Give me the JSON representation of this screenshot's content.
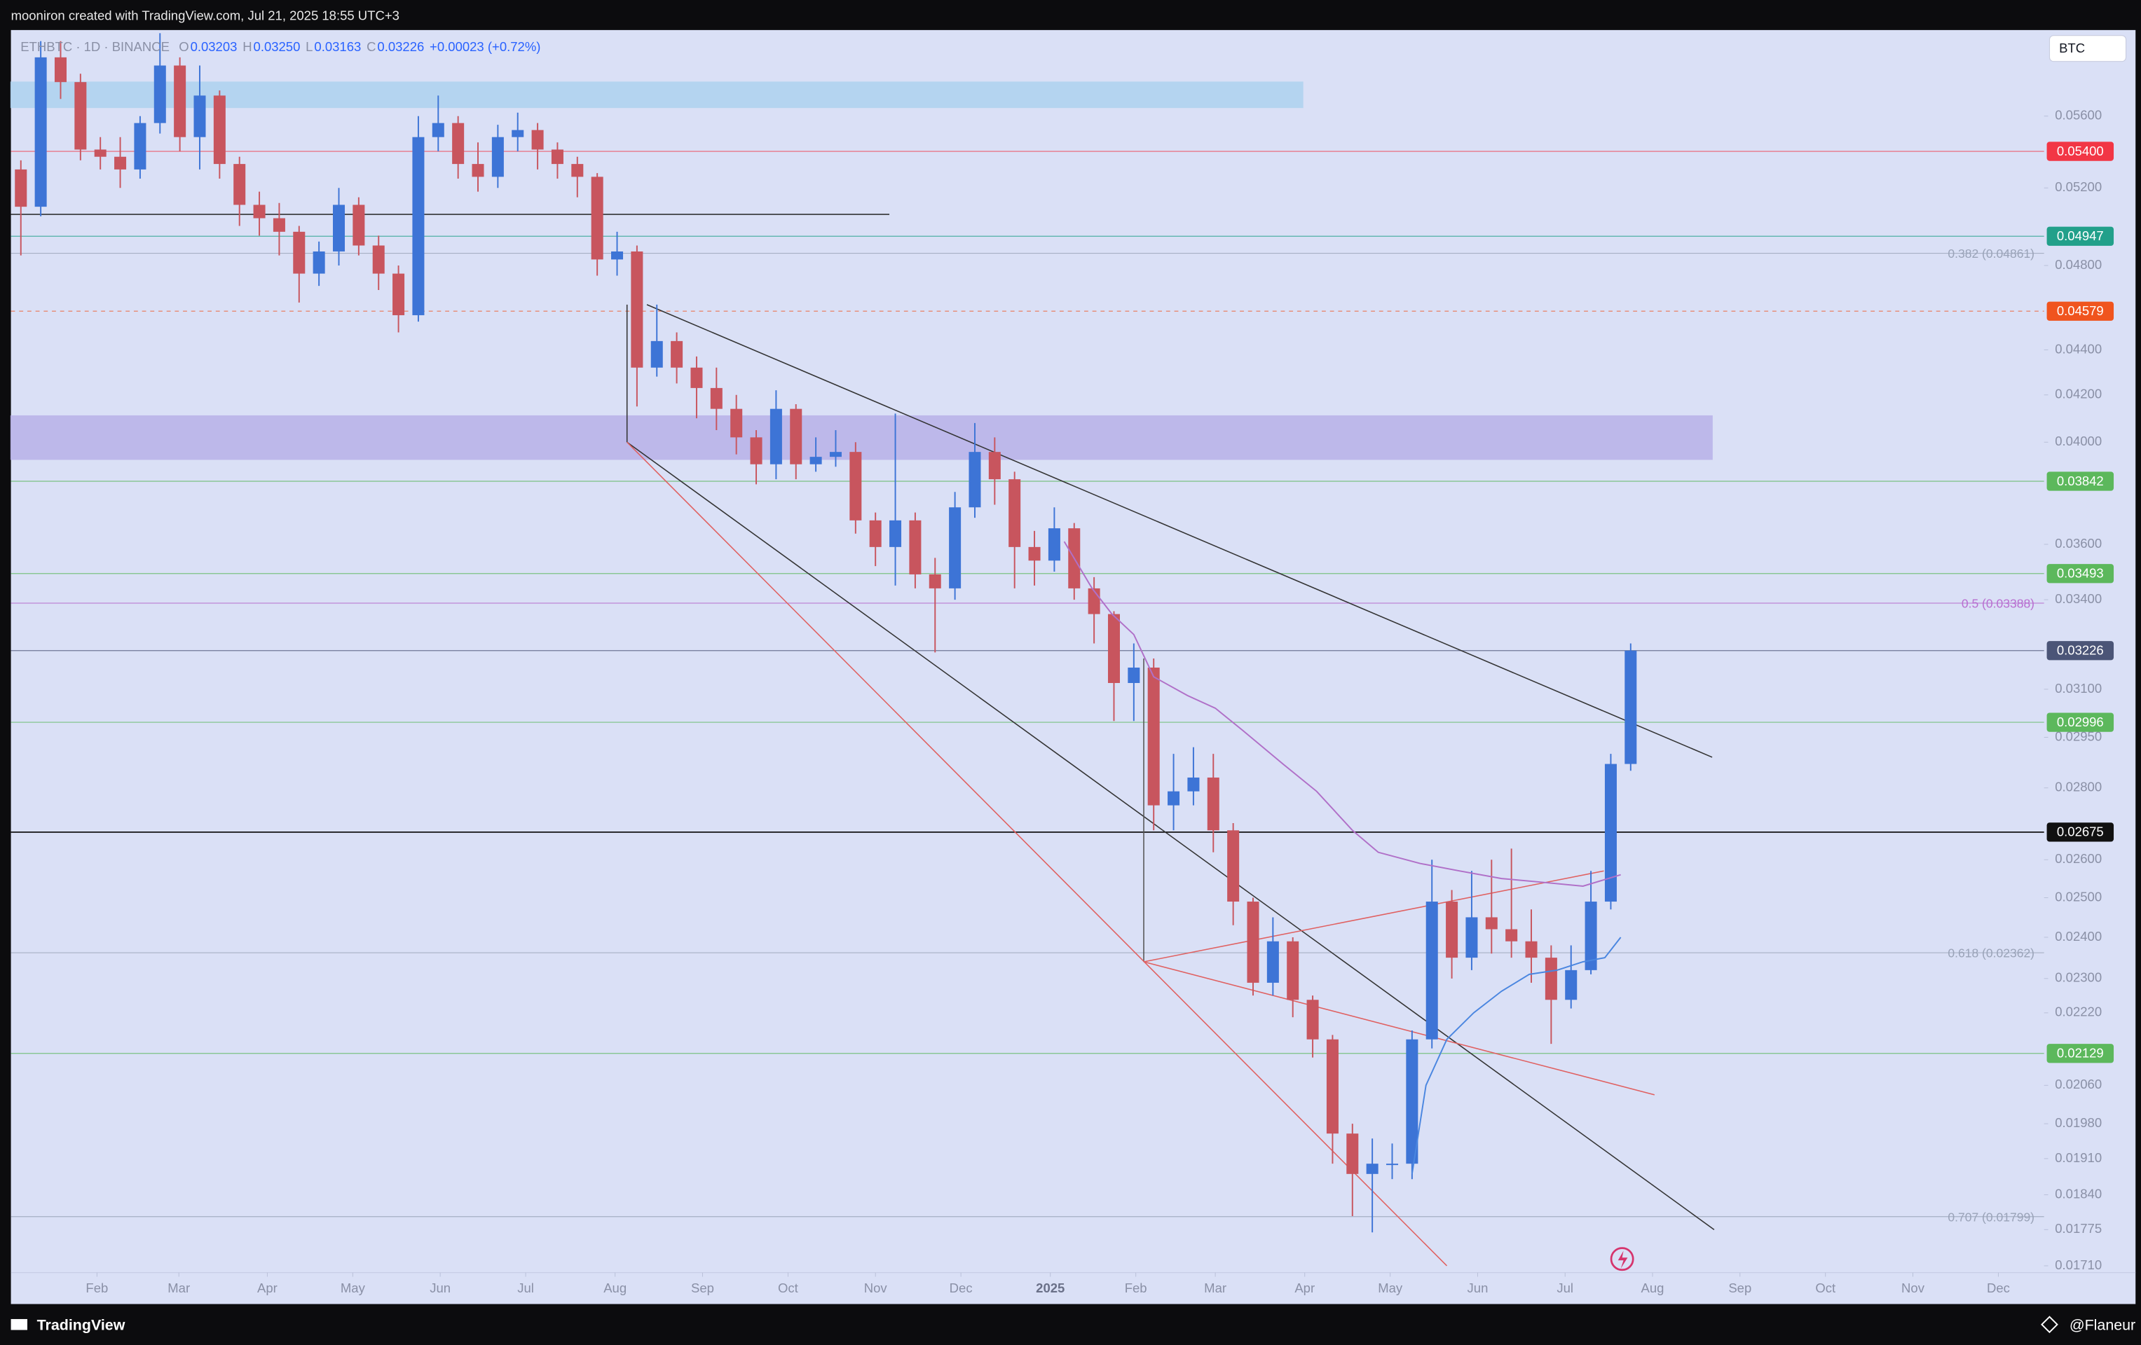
{
  "header": {
    "attribution": "mooniron created with TradingView.com, Jul 21, 2025 18:55 UTC+3"
  },
  "footer": {
    "brand": "TradingView",
    "author": "@Flaneur"
  },
  "chart_data": {
    "type": "candlestick",
    "title": "ETHBTC · 1D · BINANCE",
    "ohlc": [
      {
        "key": "O",
        "value": "0.03203"
      },
      {
        "key": "H",
        "value": "0.03250"
      },
      {
        "key": "L",
        "value": "0.03163"
      },
      {
        "key": "C",
        "value": "0.03226"
      }
    ],
    "change": "+0.00023 (+0.72%)",
    "currency": "BTC",
    "log_scale": true,
    "up_color": "#3d74d6",
    "down_color": "#c8555e",
    "open": [
      0.053,
      0.051,
      0.0595,
      0.058,
      0.0541,
      0.0537,
      0.053,
      0.0556,
      0.059,
      0.0548,
      0.0572,
      0.0533,
      0.0511,
      0.0504,
      0.0497,
      0.0476,
      0.0487,
      0.0511,
      0.049,
      0.0476,
      0.0456,
      0.0548,
      0.0556,
      0.0533,
      0.0526,
      0.0548,
      0.0552,
      0.0541,
      0.0533,
      0.0526,
      0.0483,
      0.0487,
      0.0432,
      0.0444,
      0.0432,
      0.0423,
      0.0414,
      0.0402,
      0.0391,
      0.0414,
      0.0391,
      0.0394,
      0.0396,
      0.0369,
      0.0359,
      0.0369,
      0.0349,
      0.0344,
      0.0374,
      0.0396,
      0.0385,
      0.0359,
      0.0354,
      0.0366,
      0.0344,
      0.0335,
      0.0312,
      0.0317,
      0.0275,
      0.0279,
      0.0283,
      0.0268,
      0.0249,
      0.0229,
      0.0239,
      0.0225,
      0.0216,
      0.0196,
      0.0188,
      0.019,
      0.019,
      0.0216,
      0.0249,
      0.0235,
      0.0245,
      0.0242,
      0.0239,
      0.0235,
      0.0225,
      0.0232,
      0.0249,
      0.0287
    ],
    "high": [
      0.0535,
      0.0605,
      0.0605,
      0.0585,
      0.0548,
      0.0548,
      0.056,
      0.061,
      0.0595,
      0.059,
      0.0575,
      0.0537,
      0.0518,
      0.0512,
      0.05,
      0.0492,
      0.052,
      0.0515,
      0.0495,
      0.048,
      0.056,
      0.0572,
      0.056,
      0.0545,
      0.0555,
      0.0562,
      0.0556,
      0.0545,
      0.0537,
      0.0528,
      0.0497,
      0.049,
      0.0461,
      0.0448,
      0.0437,
      0.0432,
      0.042,
      0.0405,
      0.0422,
      0.0416,
      0.0402,
      0.0405,
      0.04,
      0.0372,
      0.0412,
      0.0372,
      0.0355,
      0.038,
      0.0408,
      0.0402,
      0.0388,
      0.0365,
      0.0374,
      0.0368,
      0.0348,
      0.0336,
      0.0325,
      0.032,
      0.029,
      0.0292,
      0.029,
      0.027,
      0.025,
      0.0245,
      0.024,
      0.0226,
      0.0217,
      0.0198,
      0.0195,
      0.0194,
      0.0218,
      0.026,
      0.0252,
      0.0257,
      0.026,
      0.0263,
      0.0247,
      0.0238,
      0.0238,
      0.0257,
      0.029,
      0.0325
    ],
    "low": [
      0.0485,
      0.0505,
      0.057,
      0.0535,
      0.053,
      0.052,
      0.0525,
      0.055,
      0.054,
      0.053,
      0.0525,
      0.05,
      0.0495,
      0.0485,
      0.0462,
      0.047,
      0.048,
      0.0485,
      0.0468,
      0.0448,
      0.0453,
      0.054,
      0.0525,
      0.0518,
      0.052,
      0.054,
      0.053,
      0.0525,
      0.0515,
      0.0475,
      0.0475,
      0.0415,
      0.0428,
      0.0425,
      0.041,
      0.0405,
      0.0395,
      0.0383,
      0.0385,
      0.0385,
      0.0388,
      0.039,
      0.0364,
      0.0352,
      0.0345,
      0.0344,
      0.0322,
      0.034,
      0.037,
      0.0375,
      0.0344,
      0.0345,
      0.035,
      0.034,
      0.0325,
      0.03,
      0.03,
      0.0268,
      0.0268,
      0.0275,
      0.0262,
      0.0243,
      0.0226,
      0.0226,
      0.0221,
      0.0212,
      0.019,
      0.018,
      0.0177,
      0.0187,
      0.0187,
      0.0214,
      0.023,
      0.0232,
      0.0236,
      0.0235,
      0.0229,
      0.0215,
      0.0223,
      0.0231,
      0.0247,
      0.0285
    ],
    "close": [
      0.051,
      0.0595,
      0.058,
      0.0541,
      0.0537,
      0.053,
      0.0556,
      0.059,
      0.0548,
      0.0572,
      0.0533,
      0.0511,
      0.0504,
      0.0497,
      0.0476,
      0.0487,
      0.0511,
      0.049,
      0.0476,
      0.0456,
      0.0548,
      0.0556,
      0.0533,
      0.0526,
      0.0548,
      0.0552,
      0.0541,
      0.0533,
      0.0526,
      0.0483,
      0.0487,
      0.0432,
      0.0444,
      0.0432,
      0.0423,
      0.0414,
      0.0402,
      0.0391,
      0.0414,
      0.0391,
      0.0394,
      0.0396,
      0.0369,
      0.0359,
      0.0369,
      0.0349,
      0.0344,
      0.0374,
      0.0396,
      0.0385,
      0.0359,
      0.0354,
      0.0366,
      0.0344,
      0.0335,
      0.0312,
      0.0317,
      0.0275,
      0.0279,
      0.0283,
      0.0268,
      0.0249,
      0.0229,
      0.0239,
      0.0225,
      0.0216,
      0.0196,
      0.0188,
      0.019,
      0.019,
      0.0216,
      0.0249,
      0.0235,
      0.0245,
      0.0242,
      0.0239,
      0.0235,
      0.0225,
      0.0232,
      0.0249,
      0.0287,
      0.03226
    ],
    "xlim": [
      -0.5,
      101.8
    ],
    "xticks": [
      {
        "value": 3.83,
        "label": "Feb"
      },
      {
        "value": 7.95,
        "label": "Mar"
      },
      {
        "value": 12.4,
        "label": "Apr"
      },
      {
        "value": 16.7,
        "label": "May"
      },
      {
        "value": 21.1,
        "label": "Jun"
      },
      {
        "value": 25.4,
        "label": "Jul"
      },
      {
        "value": 29.9,
        "label": "Aug"
      },
      {
        "value": 34.3,
        "label": "Sep"
      },
      {
        "value": 38.6,
        "label": "Oct"
      },
      {
        "value": 43.0,
        "label": "Nov"
      },
      {
        "value": 47.3,
        "label": "Dec"
      },
      {
        "value": 51.8,
        "label": "2025"
      },
      {
        "value": 56.1,
        "label": "Feb"
      },
      {
        "value": 60.1,
        "label": "Mar"
      },
      {
        "value": 64.6,
        "label": "Apr"
      },
      {
        "value": 68.9,
        "label": "May"
      },
      {
        "value": 73.3,
        "label": "Jun"
      },
      {
        "value": 77.7,
        "label": "Jul"
      },
      {
        "value": 82.1,
        "label": "Aug"
      },
      {
        "value": 86.5,
        "label": "Sep"
      },
      {
        "value": 90.8,
        "label": "Oct"
      },
      {
        "value": 95.2,
        "label": "Nov"
      },
      {
        "value": 99.5,
        "label": "Dec"
      }
    ],
    "ylim": [
      0.01698,
      0.0612
    ],
    "yticks": [
      {
        "value": 0.056,
        "label": "0.05600"
      },
      {
        "value": 0.052,
        "label": "0.05200"
      },
      {
        "value": 0.048,
        "label": "0.04800"
      },
      {
        "value": 0.044,
        "label": "0.04400"
      },
      {
        "value": 0.042,
        "label": "0.04200"
      },
      {
        "value": 0.04,
        "label": "0.04000"
      },
      {
        "value": 0.036,
        "label": "0.03600"
      },
      {
        "value": 0.034,
        "label": "0.03400"
      },
      {
        "value": 0.031,
        "label": "0.03100"
      },
      {
        "value": 0.0295,
        "label": "0.02950"
      },
      {
        "value": 0.028,
        "label": "0.02800"
      },
      {
        "value": 0.026,
        "label": "0.02600"
      },
      {
        "value": 0.025,
        "label": "0.02500"
      },
      {
        "value": 0.024,
        "label": "0.02400"
      },
      {
        "value": 0.023,
        "label": "0.02300"
      },
      {
        "value": 0.0222,
        "label": "0.02220"
      },
      {
        "value": 0.0206,
        "label": "0.02060"
      },
      {
        "value": 0.0198,
        "label": "0.01980"
      },
      {
        "value": 0.0191,
        "label": "0.01910"
      },
      {
        "value": 0.0184,
        "label": "0.01840"
      },
      {
        "value": 0.01775,
        "label": "0.01775"
      },
      {
        "value": 0.0171,
        "label": "0.01710"
      }
    ],
    "levels": [
      {
        "value": 0.054,
        "label": "0.05400",
        "color": "#f23645"
      },
      {
        "value": 0.04947,
        "label": "0.04947",
        "color": "#22a08a"
      },
      {
        "value": 0.04579,
        "label": "0.04579",
        "color": "#f0541e"
      },
      {
        "value": 0.03842,
        "label": "0.03842",
        "color": "#5cb85c"
      },
      {
        "value": 0.03493,
        "label": "0.03493",
        "color": "#5cb85c"
      },
      {
        "value": 0.03226,
        "label": "0.03226",
        "color": "#4b5577"
      },
      {
        "value": 0.02996,
        "label": "0.02996",
        "color": "#5cb85c"
      },
      {
        "value": 0.02675,
        "label": "0.02675",
        "color": "#111111"
      },
      {
        "value": 0.02129,
        "label": "0.02129",
        "color": "#5cb85c"
      }
    ],
    "fib_levels": [
      {
        "value": 0.04861,
        "label": "0.382 (0.04861)",
        "color": "#9aa3b8"
      },
      {
        "value": 0.03388,
        "label": "0.5 (0.03388)",
        "color": "#b86fd0"
      },
      {
        "value": 0.02362,
        "label": "0.618 (0.02362)",
        "color": "#9aa3b8"
      },
      {
        "value": 0.01799,
        "label": "0.707 (0.01799)",
        "color": "#9aa3b8"
      }
    ],
    "zones": [
      {
        "x": [
          -0.5,
          64.5
        ],
        "values": [
          0.058,
          0.0565
        ],
        "color": "#aed3ef"
      },
      {
        "x": [
          -0.5,
          85.1
        ],
        "values": [
          0.0411,
          0.0393
        ],
        "color": "#b9b2e8"
      }
    ],
    "trendlines": [
      {
        "x": [
          -0.5,
          43.7
        ],
        "values": [
          0.0506,
          0.0506
        ],
        "color": "#222222"
      },
      {
        "x": [
          31.5,
          85.1
        ],
        "values": [
          0.0461,
          0.0289
        ],
        "color": "#333333"
      },
      {
        "x": [
          30.5,
          85.2
        ],
        "values": [
          0.04,
          0.01775
        ],
        "color": "#333333"
      },
      {
        "x": [
          30.5,
          30.5
        ],
        "values": [
          0.0461,
          0.04
        ],
        "color": "#333333"
      },
      {
        "x": [
          56.5,
          56.5
        ],
        "values": [
          0.032,
          0.0234
        ],
        "color": "#555555"
      },
      {
        "x": [
          30.5,
          71.75
        ],
        "values": [
          0.04,
          0.0171
        ],
        "color": "#e06060"
      },
      {
        "x": [
          56.5,
          82.2
        ],
        "values": [
          0.0234,
          0.0204
        ],
        "color": "#e06060"
      },
      {
        "x": [
          56.5,
          79.65
        ],
        "values": [
          0.0234,
          0.0257
        ],
        "color": "#e06060"
      }
    ],
    "moving_averages": [
      {
        "color": "#b070c8",
        "x": [
          52.5,
          53.9,
          54.9,
          56.0,
          57.0,
          58.7,
          60.1,
          61.5,
          63.5,
          65.2,
          67.0,
          68.3,
          70.4,
          72.4,
          74.5,
          76.6,
          78.6,
          80.5
        ],
        "values": [
          0.0361,
          0.0344,
          0.0335,
          0.0328,
          0.0314,
          0.0308,
          0.0304,
          0.0297,
          0.0287,
          0.0279,
          0.0268,
          0.0262,
          0.0259,
          0.0257,
          0.0255,
          0.0254,
          0.0253,
          0.0256
        ]
      },
      {
        "color": "#4a86e0",
        "x": [
          70.0,
          70.7,
          71.75,
          73.1,
          74.5,
          75.9,
          77.3,
          78.6,
          79.7,
          80.5
        ],
        "values": [
          0.0188,
          0.0206,
          0.0216,
          0.0222,
          0.0227,
          0.0231,
          0.0232,
          0.0234,
          0.0235,
          0.024
        ]
      }
    ]
  }
}
